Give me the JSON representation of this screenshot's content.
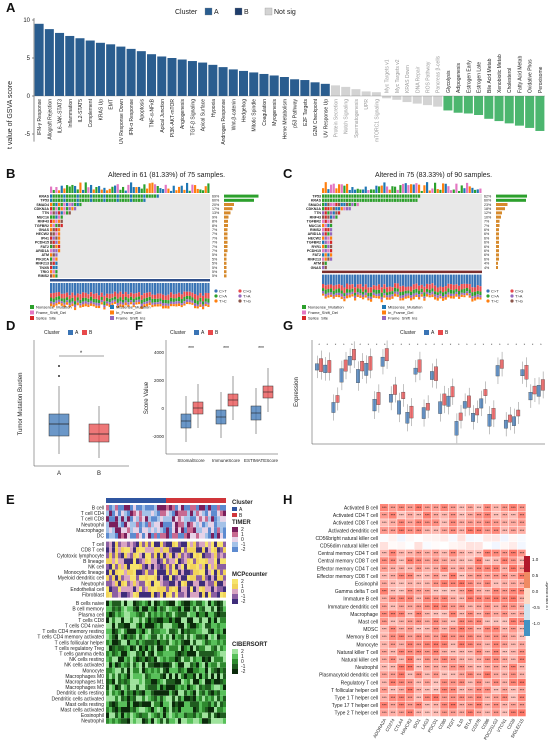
{
  "panels": {
    "A": {
      "letter": "A"
    },
    "B": {
      "letter": "B",
      "title": "Altered in 61 (81.33%) of 75 samples."
    },
    "C": {
      "letter": "C",
      "title": "Altered in 75 (83.33%) of 90 samples."
    },
    "D": {
      "letter": "D"
    },
    "E": {
      "letter": "E"
    },
    "F": {
      "letter": "F"
    },
    "G": {
      "letter": "G"
    },
    "H": {
      "letter": "H"
    }
  },
  "colors": {
    "A": "#2a5d8f",
    "B": "#1e3d6b",
    "notsig": "#d3d3d3",
    "green": "#4cb66f",
    "redA": "#e8494b",
    "blueA": "#3a74b5"
  },
  "chart_data": [
    {
      "type": "bar",
      "panel": "A",
      "ylabel": "t value of GSVA score",
      "legend_title": "Cluster",
      "legend": [
        "A",
        "B",
        "Not sig"
      ],
      "yticks": [
        "10",
        "5",
        "0",
        "-5"
      ],
      "ylim": [
        -6,
        10
      ],
      "categories": [
        "IFN-γ Response",
        "Allograft Rejection",
        "IL6-JAK-STAT3",
        "Inflammation",
        "IL2-STAT5",
        "Complement",
        "KRAS Up",
        "EMT",
        "UV Response Down",
        "IFN-α Response",
        "Apoptosis",
        "TNF-α-NFκB",
        "Apical Junction",
        "PI3K-AKT-mTOR",
        "Angiogenesis",
        "TGF-β Signaling",
        "Apical Surface",
        "Hypoxia",
        "Androgen Response",
        "Wnt-β-catenin",
        "Hedgehog",
        "Mitotic Spindle",
        "Coagulation",
        "Myogenesis",
        "Heme Metabolism",
        "p53 Pathway",
        "E2F Targets",
        "G2M Checkpoint",
        "UV Response Up",
        "Protein Secretion",
        "Notch Signaling",
        "Spermatogenesis",
        "UPR",
        "mTORC1 Signaling",
        "Myc Targets v1",
        "Myc Targets v2",
        "KRAS Down",
        "DNA Repair",
        "ROS Pathway",
        "Pancreas β-cells",
        "Glycolysis",
        "Adipogenesis",
        "Estrogen Early",
        "Estrogen Late",
        "Bile Acid Metab",
        "Xenobiotic Metab",
        "Cholesterol",
        "Fatty Acid Metab",
        "Oxidative Phos",
        "Peroxisome"
      ],
      "values": [
        9.5,
        8.8,
        8.3,
        7.9,
        7.6,
        7.3,
        7.0,
        6.8,
        6.5,
        6.2,
        5.9,
        5.5,
        5.2,
        5.0,
        4.8,
        4.6,
        4.4,
        4.1,
        3.8,
        3.5,
        3.3,
        3.1,
        2.9,
        2.7,
        2.5,
        2.2,
        2.1,
        1.8,
        1.6,
        1.4,
        1.2,
        0.9,
        0.6,
        0.5,
        -0.3,
        -0.5,
        -0.8,
        -1.0,
        -1.2,
        -1.4,
        -1.9,
        -2.2,
        -2.3,
        -2.5,
        -3.0,
        -3.3,
        -3.6,
        -3.9,
        -4.2,
        -4.6
      ],
      "groups": [
        "A",
        "A",
        "A",
        "A",
        "A",
        "A",
        "A",
        "A",
        "A",
        "A",
        "A",
        "A",
        "A",
        "A",
        "A",
        "A",
        "A",
        "A",
        "A",
        "A",
        "A",
        "A",
        "A",
        "A",
        "A",
        "A",
        "A",
        "A",
        "A",
        "N",
        "N",
        "N",
        "N",
        "N",
        "N",
        "N",
        "N",
        "N",
        "N",
        "N",
        "B",
        "B",
        "B",
        "B",
        "B",
        "B",
        "B",
        "B",
        "B",
        "B"
      ]
    },
    {
      "type": "bar",
      "panel": "B",
      "title": "Altered in 61 (81.33%) of 75 samples.",
      "categories": [
        "KRAS",
        "TP53",
        "SMAD4",
        "CDKN2A",
        "TTN",
        "MUC16",
        "RNF43",
        "TGFBR2",
        "GNAS",
        "HECW2",
        "IPH1",
        "PCDH15",
        "FAT2",
        "ARID1A",
        "ATM",
        "PIK3CA",
        "RNF213",
        "TNXB",
        "TRIO",
        "RIMS2"
      ],
      "values": [
        69,
        60,
        20,
        17,
        13,
        9,
        8,
        8,
        7,
        7,
        7,
        7,
        7,
        7,
        5,
        5,
        5,
        5,
        5,
        5
      ],
      "unit": "%"
    },
    {
      "type": "bar",
      "panel": "C",
      "title": "Altered in 75 (83.33%) of 90 samples.",
      "categories": [
        "TP53",
        "KRAS",
        "SMAD4",
        "CDKN2A",
        "TTN",
        "RNF43",
        "TGFBR2",
        "MUC16",
        "RIMS2",
        "ARID1A",
        "HECW2",
        "TGFBR2",
        "RYR1",
        "PCDH15",
        "FAT2",
        "RNF213",
        "ATM",
        "GNAS"
      ],
      "values": [
        62,
        60,
        23,
        18,
        12,
        10,
        7,
        7,
        6,
        6,
        6,
        6,
        6,
        6,
        6,
        6,
        4,
        4
      ],
      "unit": "%"
    },
    {
      "type": "box",
      "panel": "D",
      "ylabel": "Tumor Mutation Burden",
      "legend_title": "Cluster",
      "legend": [
        "A",
        "B"
      ],
      "categories": [
        "A",
        "B"
      ],
      "significance": "*"
    },
    {
      "type": "box",
      "panel": "F",
      "ylabel": "Score Value",
      "categories": [
        "StromalScore",
        "ImmuneScore",
        "ESTIMATEScore"
      ],
      "significance": [
        "***",
        "***",
        "***"
      ],
      "yticks": [
        "4000",
        "2000",
        "0",
        "-2000"
      ]
    },
    {
      "type": "box",
      "panel": "G",
      "ylabel": "Expression",
      "legend_title": "Cluster"
    },
    {
      "type": "heatmap",
      "panel": "E",
      "annotation_title": "Cluster",
      "annotation_levels": [
        "A",
        "B"
      ],
      "row_groups": [
        {
          "name": "TIMER",
          "ticks": [
            "2",
            "1",
            "0",
            "-1",
            "-2"
          ],
          "rows": [
            "B cell",
            "T cell CD4",
            "T cell CD8",
            "Neutrophil",
            "Macrophage",
            "DC"
          ]
        },
        {
          "name": "MCPcounter",
          "ticks": [
            "2",
            "1",
            "0",
            "-1",
            "-2"
          ],
          "rows": [
            "T cell",
            "CD8 T cell",
            "Cytotoxic lymphocyte",
            "B lineage",
            "NK cell",
            "Monocytic lineage",
            "Myeloid dendritic cell",
            "Neutrophil",
            "Endothelial cell",
            "Fibroblast"
          ]
        },
        {
          "name": "CIBERSORT",
          "ticks": [
            "2",
            "1",
            "0",
            "-1",
            "-2"
          ],
          "rows": [
            "B cells naive",
            "B cell memory",
            "Plasma cell",
            "T cells CD8",
            "T cells CD4 naive",
            "T cells CD4 memory resting",
            "T cells CD4 memory activated",
            "T cells follicular helper",
            "T cells regulatory Treg",
            "T cells gamma delta",
            "NK cells resting",
            "NK cells activated",
            "Monocyte",
            "Macrophages M0",
            "Macrophages M1",
            "Macrophages M2",
            "Dendritic cells resting",
            "Dendritic cells activated",
            "Mast cells resting",
            "Mast cells activated",
            "Eosinophil",
            "Neutrophil"
          ]
        }
      ]
    },
    {
      "type": "heatmap",
      "panel": "H",
      "legend_title": "Spearman's r",
      "legend_ticks": [
        "1.0",
        "0.5",
        "0.0",
        "-0.5",
        "-1.0"
      ],
      "rows": [
        "Activated B cell",
        "Activated CD4 T cell",
        "Activated CD8 T cell",
        "Activated dendritic cell",
        "CD56bright natural killer cell",
        "CD56dim natural killer cell",
        "Central memory CD4 T cell",
        "Central memory CD8 T cell",
        "Effector memory CD4 T cell",
        "Effector memory CD8 T cell",
        "Eosinophil",
        "Gamma delta T cell",
        "Immature B cell",
        "Immature dendritic cell",
        "Macrophage",
        "Mast cell",
        "MDSC",
        "Memory B cell",
        "Monocyte",
        "Natural killer T cell",
        "Natural killer cell",
        "Neutrophil",
        "Plasmacytoid dendritic cell",
        "Regulatory T cell",
        "T follicular helper cell",
        "Type 1 T helper cell",
        "Type 17 T helper cell",
        "Type 2 T helper cell"
      ],
      "columns": [
        "ADORA2A",
        "CD274",
        "CTLA4",
        "HAVCR2",
        "IDO1",
        "LAG3",
        "PDCD1",
        "CD80",
        "TIGIT",
        "IL10",
        "BTLA",
        "CD276",
        "CD86",
        "PDCD1LG2",
        "VTCN1",
        "CD28",
        "SIGLEC15"
      ]
    }
  ]
}
